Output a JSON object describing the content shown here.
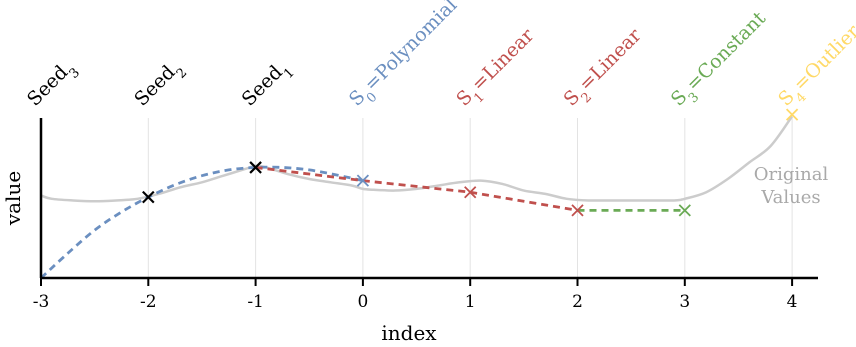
{
  "chart_data": {
    "type": "line",
    "xlabel": "index",
    "ylabel": "value",
    "x_ticks": [
      "-3",
      "-2",
      "-1",
      "0",
      "1",
      "2",
      "3",
      "4"
    ],
    "xlim": [
      -3,
      4.25
    ],
    "ylim": [
      0,
      1
    ],
    "grid": "vertical",
    "annotation": "Original Values",
    "colors": {
      "original": "#cccccc",
      "polynomial": "#6b8fc0",
      "linear": "#c0504d",
      "constant": "#6aaa55",
      "outlier": "#ffd966",
      "seed": "#000000"
    },
    "top_labels": [
      {
        "x": -3,
        "base": "Seed",
        "sub": "3",
        "rest": "",
        "color": "#000000"
      },
      {
        "x": -2,
        "base": "Seed",
        "sub": "2",
        "rest": "",
        "color": "#000000"
      },
      {
        "x": -1,
        "base": "Seed",
        "sub": "1",
        "rest": "",
        "color": "#000000"
      },
      {
        "x": 0,
        "base": "S",
        "sub": "0",
        "rest": "=Polynomial",
        "color": "#6b8fc0"
      },
      {
        "x": 1,
        "base": "S",
        "sub": "1",
        "rest": "=Linear",
        "color": "#c0504d"
      },
      {
        "x": 2,
        "base": "S",
        "sub": "2",
        "rest": "=Linear",
        "color": "#c0504d"
      },
      {
        "x": 3,
        "base": "S",
        "sub": "3",
        "rest": "=Constant",
        "color": "#6aaa55"
      },
      {
        "x": 4,
        "base": "S",
        "sub": "4",
        "rest": "=Outlier",
        "color": "#ffd966"
      }
    ],
    "original_series": {
      "x": [
        -3,
        -2.9,
        -2.7,
        -2.5,
        -2.3,
        -2.1,
        -1.9,
        -1.7,
        -1.5,
        -1.3,
        -1.1,
        -1.0,
        -0.9,
        -0.7,
        -0.5,
        -0.3,
        -0.1,
        0.0,
        0.1,
        0.3,
        0.5,
        0.7,
        0.9,
        1.1,
        1.3,
        1.5,
        1.7,
        1.9,
        2.1,
        2.3,
        2.5,
        2.7,
        2.9,
        3.0,
        3.2,
        3.4,
        3.6,
        3.8,
        4.0
      ],
      "y": [
        0.5,
        0.48,
        0.47,
        0.465,
        0.47,
        0.48,
        0.51,
        0.55,
        0.58,
        0.62,
        0.66,
        0.68,
        0.67,
        0.63,
        0.6,
        0.58,
        0.56,
        0.54,
        0.535,
        0.53,
        0.54,
        0.56,
        0.58,
        0.59,
        0.57,
        0.53,
        0.51,
        0.48,
        0.47,
        0.47,
        0.47,
        0.47,
        0.47,
        0.48,
        0.52,
        0.6,
        0.7,
        0.8,
        0.98
      ]
    },
    "polynomial_series": {
      "x": [
        -3,
        -2.75,
        -2.5,
        -2.25,
        -2,
        -1.75,
        -1.5,
        -1.25,
        -1,
        -0.75,
        -0.5,
        -0.25,
        0
      ],
      "y": [
        0.0,
        0.15,
        0.29,
        0.4,
        0.49,
        0.565,
        0.62,
        0.655,
        0.67,
        0.67,
        0.655,
        0.625,
        0.59
      ]
    },
    "linear_series": {
      "x": [
        -1,
        0,
        1,
        2
      ],
      "y": [
        0.67,
        0.59,
        0.52,
        0.41
      ]
    },
    "constant_series": {
      "x": [
        2,
        3
      ],
      "y": [
        0.41,
        0.41
      ]
    },
    "points": [
      {
        "x": -2,
        "y": 0.49,
        "kind": "seed"
      },
      {
        "x": -1,
        "y": 0.67,
        "kind": "seed"
      },
      {
        "x": 0,
        "y": 0.59,
        "kind": "polynomial"
      },
      {
        "x": 1,
        "y": 0.52,
        "kind": "linear"
      },
      {
        "x": 2,
        "y": 0.41,
        "kind": "linear"
      },
      {
        "x": 3,
        "y": 0.41,
        "kind": "constant"
      },
      {
        "x": 4,
        "y": 0.99,
        "kind": "outlier"
      }
    ]
  }
}
